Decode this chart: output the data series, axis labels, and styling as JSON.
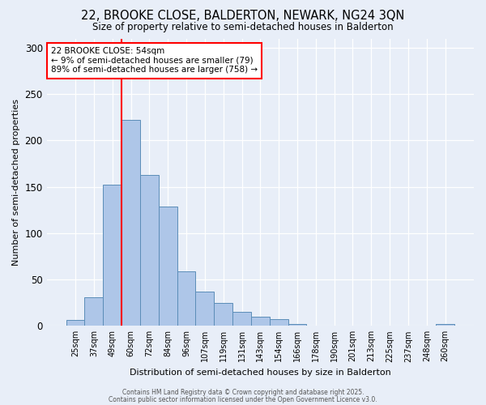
{
  "title_line1": "22, BROOKE CLOSE, BALDERTON, NEWARK, NG24 3QN",
  "title_line2": "Size of property relative to semi-detached houses in Balderton",
  "xlabel": "Distribution of semi-detached houses by size in Balderton",
  "ylabel": "Number of semi-detached properties",
  "categories": [
    "25sqm",
    "37sqm",
    "49sqm",
    "60sqm",
    "72sqm",
    "84sqm",
    "96sqm",
    "107sqm",
    "119sqm",
    "131sqm",
    "143sqm",
    "154sqm",
    "166sqm",
    "178sqm",
    "190sqm",
    "201sqm",
    "213sqm",
    "225sqm",
    "237sqm",
    "248sqm",
    "260sqm"
  ],
  "values": [
    6,
    31,
    152,
    222,
    163,
    129,
    59,
    37,
    25,
    15,
    10,
    7,
    2,
    0,
    0,
    0,
    0,
    0,
    0,
    0,
    2
  ],
  "bar_color": "#aec6e8",
  "bar_edge_color": "#5b8db8",
  "red_line_x": 2.5,
  "annotation_title": "22 BROOKE CLOSE: 54sqm",
  "annotation_line2": "← 9% of semi-detached houses are smaller (79)",
  "annotation_line3": "89% of semi-detached houses are larger (758) →",
  "ylim": [
    0,
    310
  ],
  "yticks": [
    0,
    50,
    100,
    150,
    200,
    250,
    300
  ],
  "background_color": "#e8eef8",
  "grid_color": "#ffffff",
  "footer_line1": "Contains HM Land Registry data © Crown copyright and database right 2025.",
  "footer_line2": "Contains public sector information licensed under the Open Government Licence v3.0."
}
